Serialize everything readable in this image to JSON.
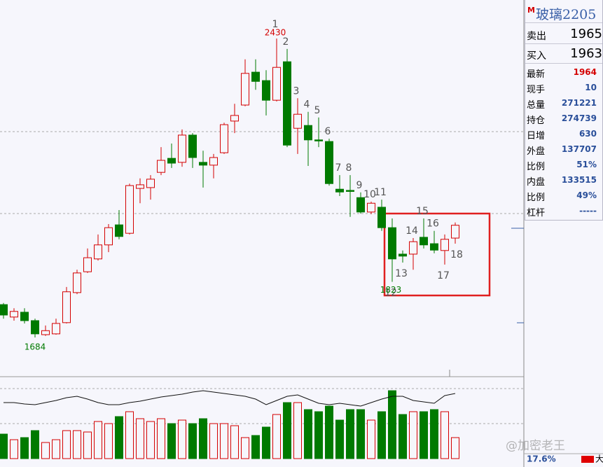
{
  "chart_data": {
    "type": "candlestick",
    "categories": [
      null,
      null,
      null,
      null,
      null,
      null,
      null,
      null,
      null,
      null,
      null,
      null,
      null,
      null,
      null,
      null,
      null,
      null,
      null,
      null,
      null,
      null,
      null,
      null,
      null,
      null,
      "1",
      "2",
      "3",
      "4",
      "5",
      "6",
      "7",
      "8",
      "9",
      "10",
      "11",
      "12",
      "13",
      "14",
      "15",
      "16",
      "17",
      "18"
    ],
    "open": [
      1766,
      1735,
      1747,
      1726,
      1691,
      1693,
      1721,
      1796,
      1848,
      1880,
      1915,
      1965,
      1944,
      2056,
      2058,
      2096,
      2131,
      2121,
      2189,
      2121,
      2114,
      2145,
      2224,
      2264,
      2346,
      2325,
      2276,
      2372,
      2206,
      2213,
      2177,
      2173,
      2054,
      2051,
      2033,
      1997,
      2009,
      1958,
      1892,
      1892,
      1934,
      1918,
      1901,
      1932
    ],
    "high": [
      1770,
      1757,
      1757,
      1731,
      1714,
      1731,
      1810,
      1853,
      1906,
      1941,
      1967,
      2002,
      2068,
      2081,
      2089,
      2159,
      2168,
      2203,
      2194,
      2150,
      2142,
      2220,
      2267,
      2378,
      2378,
      2351,
      2430,
      2404,
      2281,
      2247,
      2233,
      2180,
      2089,
      2089,
      2046,
      2023,
      2028,
      1981,
      1901,
      1932,
      1981,
      1950,
      1941,
      1971
    ],
    "low": [
      1731,
      1726,
      1719,
      1684,
      1688,
      1691,
      1719,
      1792,
      1845,
      1876,
      1897,
      1929,
      1941,
      2019,
      2028,
      2089,
      2107,
      2110,
      2107,
      2058,
      2081,
      2142,
      2194,
      2261,
      2302,
      2238,
      2273,
      2159,
      2142,
      2112,
      2159,
      2063,
      2037,
      1985,
      1993,
      1992,
      1950,
      1823,
      1871,
      1853,
      1906,
      1894,
      1866,
      1918
    ],
    "close": [
      1740,
      1749,
      1726,
      1693,
      1701,
      1719,
      1798,
      1845,
      1883,
      1915,
      1958,
      1936,
      2063,
      2065,
      2079,
      2126,
      2119,
      2189,
      2133,
      2114,
      2133,
      2215,
      2238,
      2343,
      2323,
      2276,
      2358,
      2164,
      2241,
      2177,
      2175,
      2068,
      2047,
      2049,
      1997,
      2019,
      1958,
      1880,
      1887,
      1923,
      1915,
      1902,
      1929,
      1964
    ],
    "volume": [
      35,
      27,
      30,
      40,
      23,
      27,
      40,
      40,
      38,
      53,
      50,
      60,
      67,
      57,
      53,
      57,
      50,
      55,
      50,
      57,
      50,
      50,
      47,
      30,
      33,
      45,
      63,
      80,
      80,
      70,
      67,
      75,
      55,
      70,
      70,
      55,
      67,
      97,
      63,
      67,
      67,
      70,
      67,
      30
    ],
    "line": [
      80,
      80,
      78,
      77,
      80,
      83,
      87,
      89,
      85,
      80,
      77,
      77,
      80,
      82,
      85,
      88,
      90,
      92,
      95,
      97,
      95,
      93,
      91,
      89,
      85,
      77,
      83,
      89,
      91,
      85,
      79,
      77,
      79,
      77,
      75,
      80,
      85,
      89,
      89,
      83,
      81,
      79,
      90,
      93
    ],
    "up_color": "#d40000",
    "down_color": "#007a00",
    "line_color": "#111111"
  },
  "panel": {
    "marker": "M",
    "symbol": "玻璃2205",
    "quotes": [
      {
        "label": "卖出",
        "value": "1965"
      },
      {
        "label": "买入",
        "value": "1963"
      }
    ],
    "rows": [
      {
        "label": "最新",
        "value": "1964"
      },
      {
        "label": "现手",
        "value": "10"
      },
      {
        "label": "总量",
        "value": "271221"
      },
      {
        "label": "持仓",
        "value": "274739"
      },
      {
        "label": "日增",
        "value": "630"
      },
      {
        "label": "外盘",
        "value": "137707"
      },
      {
        "label": "比例",
        "value": "51%"
      },
      {
        "label": "内盘",
        "value": "133515"
      },
      {
        "label": "比例",
        "value": "49%"
      },
      {
        "label": "杠杆",
        "value": "-----"
      }
    ]
  },
  "footer": {
    "percent": "17.6%",
    "badge": "大",
    "watermark": "@加密老王"
  }
}
